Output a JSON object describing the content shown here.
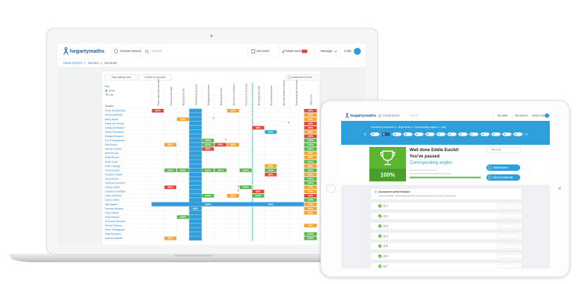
{
  "laptop": {
    "nav": {
      "logo": "hegartymaths",
      "choose_lesson": "Choose lesson",
      "search": "Search",
      "set_work": "Set work",
      "mark_work": "Mark work",
      "manage": "Manage",
      "user": "Colin"
    },
    "breadcrumb": [
      "Class 10Y/Y4",
      "Number",
      "Decimals"
    ],
    "buttons": {
      "stop": "Stop setting work",
      "confirm": "Confirm & set work",
      "download": "Download to Excel"
    },
    "key": {
      "title": "Key",
      "active": "Active",
      "late": "Late"
    },
    "student_header": "Student",
    "columns": [
      "Place value with decimals",
      "Ordering decimals",
      "Adding decimals",
      "Subtracting decimals",
      "Multiplying decimals",
      "Dividing decimals",
      "Decimals to fractions",
      "Fractions to decimals",
      "Rounding decimals",
      "Recurring decimals",
      "Decimal problem solving",
      "Estimating with decimals",
      "Total score"
    ],
    "rows": [
      {
        "name": "Annie Archimedes",
        "cells": [
          {
            "text": "90%",
            "color": "#dc4a3f"
          },
          null,
          null,
          null,
          null,
          null,
          {
            "text": "90%",
            "color": "#f2a531"
          },
          null,
          null,
          null,
          null,
          null,
          {
            "text": "90%",
            "color": "#dc4a3f"
          }
        ]
      },
      {
        "name": "Antony Aristotle",
        "cells": [
          null,
          null,
          null,
          null,
          null,
          null,
          null,
          null,
          null,
          null,
          null,
          null,
          {
            "text": "80%",
            "color": "#f2a531"
          }
        ]
      },
      {
        "name": "Barry Boole",
        "cells": [
          null,
          null,
          {
            "text": "50%",
            "color": "#f2a531"
          },
          null,
          null,
          null,
          null,
          null,
          null,
          null,
          null,
          null,
          {
            "text": "80%",
            "color": "#f2a531"
          }
        ]
      },
      {
        "name": "Frank de Fermat",
        "cells": [
          null,
          null,
          null,
          null,
          null,
          null,
          null,
          null,
          null,
          null,
          null,
          null,
          {
            "text": "60%",
            "color": "#dc4a3f"
          }
        ]
      },
      {
        "name": "Gerald de Moivre",
        "cells": [
          null,
          null,
          null,
          null,
          null,
          null,
          null,
          null,
          {
            "text": "90%",
            "color": "#dc4a3f"
          },
          null,
          null,
          null,
          {
            "text": "90%",
            "color": "#dc4a3f"
          }
        ]
      },
      {
        "name": "Denis Descartes",
        "cells": [
          null,
          null,
          null,
          null,
          null,
          null,
          null,
          null,
          null,
          {
            "text": "90%",
            "color": "#2f9fdc"
          },
          null,
          null,
          {
            "text": "80%",
            "color": "#f2a531"
          }
        ]
      },
      {
        "name": "Edward Einstein",
        "cells": [
          null,
          null,
          null,
          null,
          null,
          null,
          null,
          null,
          null,
          null,
          null,
          null,
          {
            "text": "60%",
            "color": "#dc4a3f"
          }
        ]
      },
      {
        "name": "Eve Eratosthenes",
        "cells": [
          null,
          null,
          null,
          null,
          {
            "text": "100%",
            "color": "#55b746"
          },
          null,
          null,
          null,
          null,
          null,
          null,
          null,
          {
            "text": "100%",
            "color": "#55b746"
          }
        ]
      },
      {
        "name": "Ella Euclid",
        "cells": [
          null,
          {
            "text": "90%",
            "color": "#f2a531"
          },
          null,
          null,
          {
            "text": "100%",
            "color": "#55b746"
          },
          {
            "text": "90%",
            "color": "#dc4a3f"
          },
          {
            "text": "90%",
            "color": "#f2a531"
          },
          null,
          null,
          null,
          null,
          null,
          {
            "text": "100%",
            "color": "#55b746"
          }
        ]
      },
      {
        "name": "Eamon Escher",
        "cells": [
          null,
          null,
          null,
          null,
          {
            "text": "90%",
            "color": "#dc4a3f"
          },
          null,
          null,
          null,
          null,
          null,
          null,
          null,
          {
            "text": "100%",
            "color": "#55b746"
          }
        ]
      },
      {
        "name": "Elliot Euclid",
        "cells": [
          null,
          null,
          null,
          null,
          null,
          null,
          null,
          null,
          null,
          null,
          null,
          null,
          {
            "text": "80%",
            "color": "#f2a531"
          }
        ]
      },
      {
        "name": "Ewan Euclid",
        "cells": [
          null,
          null,
          null,
          null,
          null,
          null,
          null,
          null,
          null,
          null,
          null,
          null,
          {
            "text": "80%",
            "color": "#f2a531"
          }
        ]
      },
      {
        "name": "Eddie Euler",
        "cells": [
          null,
          null,
          null,
          null,
          null,
          null,
          null,
          null,
          null,
          null,
          null,
          null,
          {
            "text": "100%",
            "color": "#55b746"
          }
        ]
      },
      {
        "name": "Pete Faraday",
        "cells": [
          null,
          null,
          null,
          null,
          null,
          null,
          null,
          null,
          null,
          {
            "text": "80%",
            "color": "#f2a531"
          },
          null,
          null,
          {
            "text": "80%",
            "color": "#f2a531"
          }
        ]
      },
      {
        "name": "Fiona Fourier",
        "cells": [
          null,
          {
            "text": "100%",
            "color": "#55b746"
          },
          {
            "text": "100%",
            "color": "#55b746"
          },
          null,
          {
            "text": "100%",
            "color": "#55b746"
          },
          {
            "text": "100%",
            "color": "#55b746"
          },
          null,
          {
            "text": "100%",
            "color": "#55b746"
          },
          null,
          {
            "text": "100%",
            "color": "#55b746"
          },
          null,
          null,
          {
            "text": "100%",
            "color": "#55b746"
          }
        ]
      },
      {
        "name": "Graham Galois",
        "cells": [
          null,
          null,
          null,
          null,
          null,
          null,
          null,
          null,
          null,
          {
            "text": "80%",
            "color": "#dc4a3f"
          },
          null,
          null,
          {
            "text": "80%",
            "color": "#f2a531"
          }
        ]
      },
      {
        "name": "Gary Gauss",
        "cells": [
          null,
          null,
          null,
          null,
          null,
          null,
          null,
          null,
          null,
          null,
          null,
          null,
          {
            "text": "100%",
            "color": "#55b746"
          }
        ]
      },
      {
        "name": "Gertrude Germain",
        "cells": [
          null,
          null,
          null,
          null,
          null,
          null,
          null,
          null,
          null,
          null,
          null,
          null,
          {
            "text": "100%",
            "color": "#55b746"
          }
        ]
      },
      {
        "name": "Gassa Godel",
        "cells": [
          null,
          {
            "text": "90%",
            "color": "#dc4a3f"
          },
          null,
          null,
          null,
          null,
          null,
          {
            "text": "100%",
            "color": "#55b746"
          },
          null,
          null,
          null,
          null,
          {
            "text": "75%",
            "color": "#f2a531"
          }
        ]
      },
      {
        "name": "Graham Goldbach",
        "cells": [
          null,
          null,
          null,
          null,
          null,
          null,
          null,
          null,
          {
            "text": "90%",
            "color": "#dc4a3f"
          },
          null,
          null,
          null,
          {
            "text": "70%",
            "color": "#f2a531"
          }
        ]
      },
      {
        "name": "Harry Hamilton",
        "cells": [
          null,
          null,
          null,
          null,
          {
            "text": "100%",
            "color": "#55b746"
          },
          null,
          {
            "text": "90%",
            "color": "#f2a531"
          },
          null,
          {
            "text": "100%",
            "color": "#55b746"
          },
          null,
          null,
          null,
          {
            "text": "60%",
            "color": "#dc4a3f"
          }
        ]
      },
      {
        "name": "Larry Leibniz",
        "cells": [
          null,
          null,
          null,
          null,
          null,
          null,
          null,
          null,
          null,
          null,
          null,
          null,
          {
            "text": "100%",
            "color": "#55b746"
          }
        ]
      },
      {
        "name": "Neil Napier",
        "highlight": true,
        "cells": [
          null,
          null,
          null,
          null,
          {
            "text": "100%",
            "color": "#2f9fdc"
          },
          null,
          null,
          null,
          null,
          {
            "text": "90%",
            "color": "#2f9fdc"
          },
          null,
          null,
          {
            "text": "70%",
            "color": "#f2a531"
          }
        ]
      },
      {
        "name": "Norman Newton",
        "cells": [
          null,
          null,
          null,
          {
            "text": "85%",
            "color": "#2f9fdc"
          },
          null,
          null,
          null,
          null,
          null,
          null,
          null,
          null,
          {
            "text": "60%",
            "color": "#f2a531"
          }
        ]
      },
      {
        "name": "Paul Pascal",
        "cells": [
          null,
          null,
          null,
          null,
          null,
          null,
          null,
          null,
          null,
          null,
          null,
          null,
          {
            "text": "90%",
            "color": "#f2a531"
          }
        ]
      },
      {
        "name": "Polly Pascal",
        "cells": [
          null,
          null,
          {
            "text": "100%",
            "color": "#55b746"
          },
          null,
          null,
          null,
          null,
          null,
          null,
          null,
          null,
          null,
          null
        ]
      },
      {
        "name": "Precious Pecorino",
        "cells": [
          null,
          null,
          null,
          null,
          null,
          null,
          null,
          null,
          null,
          null,
          null,
          null,
          null
        ]
      },
      {
        "name": "Penny Poisson",
        "cells": [
          null,
          null,
          null,
          null,
          null,
          null,
          null,
          null,
          null,
          null,
          null,
          null,
          {
            "text": "90%",
            "color": "#f2a531"
          }
        ]
      },
      {
        "name": "Peter Pythagoras",
        "cells": [
          null,
          null,
          null,
          null,
          null,
          null,
          null,
          null,
          null,
          null,
          null,
          null,
          null
        ]
      },
      {
        "name": "Raly Riemann",
        "cells": [
          null,
          null,
          null,
          null,
          null,
          null,
          null,
          null,
          null,
          null,
          null,
          null,
          {
            "text": "100%",
            "color": "#55b746"
          }
        ]
      },
      {
        "name": "Antony Aristotle",
        "cells": [
          null,
          {
            "text": "80%",
            "color": "#f2a531"
          },
          null,
          null,
          null,
          null,
          null,
          null,
          null,
          null,
          null,
          null,
          {
            "text": "100%",
            "color": "#55b746"
          }
        ]
      }
    ]
  },
  "tablet": {
    "nav": {
      "logo": "hegartymaths",
      "choose_lesson": "Choose lesson",
      "search": "Search",
      "my_tasks": "My tasks",
      "my_lessons": "My lessons",
      "user": "Eddie Euclid"
    },
    "breadcrumb": [
      "Geometry & measures",
      "Angle facts",
      "Corresponding angles",
      "Quiz"
    ],
    "result": {
      "score": "100%",
      "greeting": "Well done Eddie Euclid!",
      "status": "You've passed",
      "lesson": "Corresponding angles"
    },
    "date": "28-10-18",
    "buttons": {
      "start": "Start lesson",
      "next": "Next on task list"
    },
    "feedback": {
      "title": "Assessment overall feedback",
      "message": "Great work Eddie - keep working hard like this and you are sure to do well in your exams!"
    },
    "questions": [
      "Q 1",
      "Q 2",
      "Q 3",
      "Q 4",
      "Q 5",
      "Q 6",
      "Q 7"
    ]
  }
}
